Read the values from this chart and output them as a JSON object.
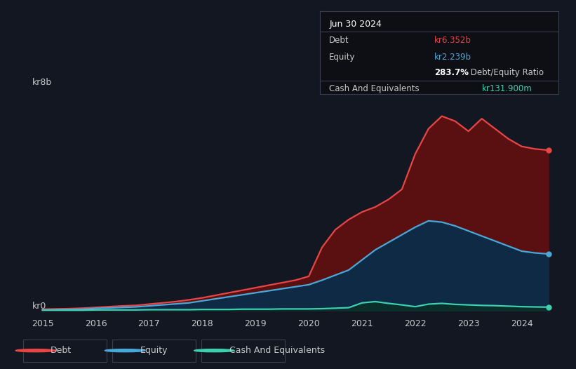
{
  "background_color": "#131722",
  "plot_bg_color": "#131722",
  "grid_color": "#2a2e39",
  "text_color": "#c8c8c8",
  "debt_color": "#e84646",
  "equity_color": "#4aa8d8",
  "cash_color": "#3dcfb0",
  "debt_fill_color": "#5a1010",
  "equity_fill_color": "#0e2a45",
  "cash_fill_color": "#0a3028",
  "ylabel_top": "kr8b",
  "ylabel_bottom": "kr0",
  "years": [
    2015.0,
    2015.25,
    2015.5,
    2015.75,
    2016.0,
    2016.25,
    2016.5,
    2016.75,
    2017.0,
    2017.25,
    2017.5,
    2017.75,
    2018.0,
    2018.25,
    2018.5,
    2018.75,
    2019.0,
    2019.25,
    2019.5,
    2019.75,
    2020.0,
    2020.25,
    2020.5,
    2020.75,
    2021.0,
    2021.25,
    2021.5,
    2021.75,
    2022.0,
    2022.25,
    2022.5,
    2022.75,
    2023.0,
    2023.25,
    2023.5,
    2023.75,
    2024.0,
    2024.25,
    2024.5
  ],
  "debt": [
    0.05,
    0.06,
    0.07,
    0.09,
    0.12,
    0.15,
    0.18,
    0.2,
    0.25,
    0.3,
    0.35,
    0.42,
    0.5,
    0.6,
    0.7,
    0.8,
    0.9,
    1.0,
    1.1,
    1.2,
    1.35,
    2.5,
    3.2,
    3.6,
    3.9,
    4.1,
    4.4,
    4.8,
    6.2,
    7.2,
    7.7,
    7.5,
    7.1,
    7.6,
    7.2,
    6.8,
    6.5,
    6.4,
    6.352
  ],
  "equity": [
    0.02,
    0.03,
    0.04,
    0.05,
    0.08,
    0.1,
    0.12,
    0.14,
    0.18,
    0.22,
    0.26,
    0.3,
    0.38,
    0.46,
    0.54,
    0.62,
    0.7,
    0.78,
    0.86,
    0.94,
    1.02,
    1.2,
    1.4,
    1.6,
    2.0,
    2.4,
    2.7,
    3.0,
    3.3,
    3.55,
    3.5,
    3.35,
    3.15,
    2.95,
    2.75,
    2.55,
    2.35,
    2.28,
    2.239
  ],
  "cash": [
    0.01,
    0.01,
    0.01,
    0.01,
    0.02,
    0.02,
    0.02,
    0.02,
    0.03,
    0.03,
    0.03,
    0.03,
    0.04,
    0.04,
    0.04,
    0.05,
    0.05,
    0.05,
    0.06,
    0.06,
    0.06,
    0.07,
    0.09,
    0.11,
    0.3,
    0.35,
    0.28,
    0.22,
    0.15,
    0.25,
    0.28,
    0.24,
    0.22,
    0.2,
    0.19,
    0.17,
    0.15,
    0.14,
    0.1319
  ],
  "xmin": 2014.85,
  "xmax": 2024.75,
  "ymin": -0.2,
  "ymax": 8.5,
  "xticks": [
    2015,
    2016,
    2017,
    2018,
    2019,
    2020,
    2021,
    2022,
    2023,
    2024
  ],
  "ytick_labels": [
    "kr8b",
    "kr0"
  ],
  "tooltip_bg": "#0d0f14",
  "tooltip_border": "#3a3f50",
  "legend_items": [
    "Debt",
    "Equity",
    "Cash And Equivalents"
  ],
  "legend_colors": [
    "#e84646",
    "#4aa8d8",
    "#3dcfb0"
  ]
}
